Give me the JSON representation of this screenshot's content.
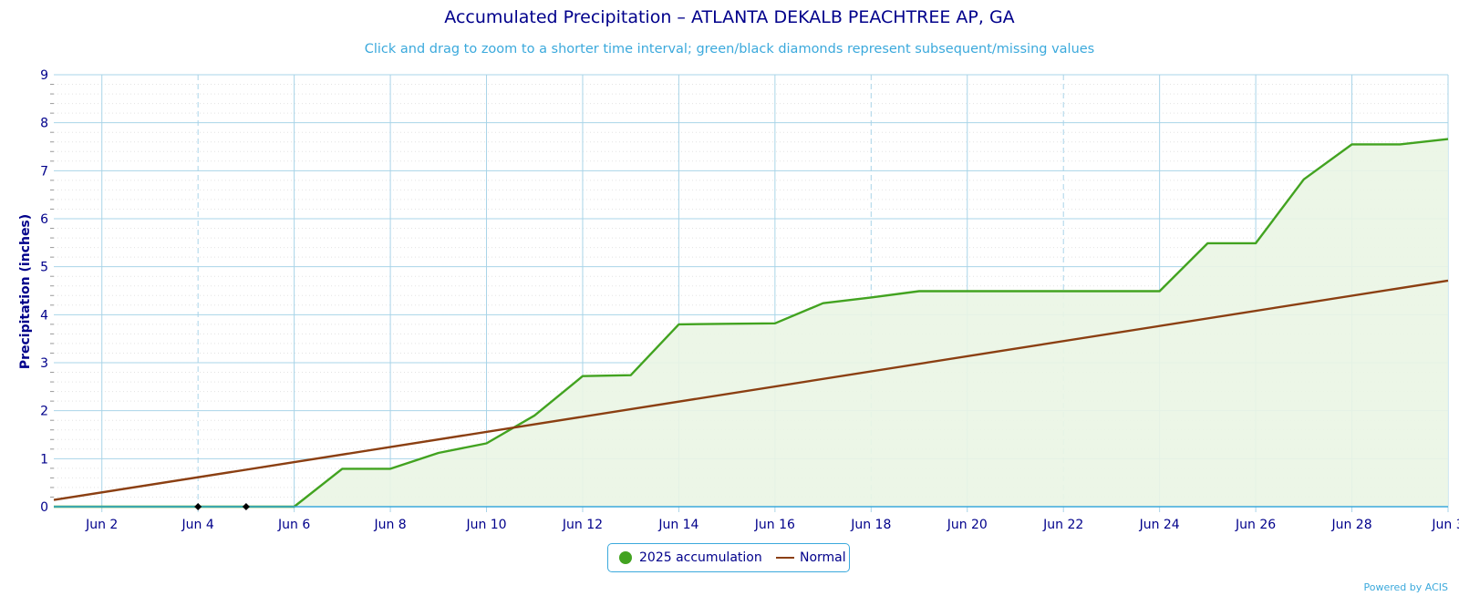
{
  "title": "Accumulated Precipitation – ATLANTA DEKALB PEACHTREE AP, GA",
  "subtitle": "Click and drag to zoom to a shorter time interval; green/black diamonds represent subsequent/missing values",
  "credit": "Powered by ACIS",
  "legend": {
    "accum_label": "2025 accumulation",
    "normal_label": "Normal"
  },
  "colors": {
    "accum_line": "#42a320",
    "accum_fill": "#eaf5e4",
    "normal_line": "#8b3f12",
    "grid": "#a9d4e8",
    "text": "#00008b",
    "accent": "#3ba9dc"
  },
  "chart_data": {
    "type": "area",
    "title": "Accumulated Precipitation – ATLANTA DEKALB PEACHTREE AP, GA",
    "ylabel": "Precipitation (inches)",
    "xlabel": "",
    "ylim": [
      0,
      9
    ],
    "xlim": [
      "Jun 1",
      "Jun 30"
    ],
    "yticks": [
      "0",
      "1",
      "2",
      "3",
      "4",
      "5",
      "6",
      "7",
      "8",
      "9"
    ],
    "xticks": [
      "Jun 2",
      "Jun 4",
      "Jun 6",
      "Jun 8",
      "Jun 10",
      "Jun 12",
      "Jun 14",
      "Jun 16",
      "Jun 18",
      "Jun 20",
      "Jun 22",
      "Jun 24",
      "Jun 26",
      "Jun 28",
      "Jun 3"
    ],
    "grid": true,
    "legend_position": "bottom-center",
    "series": [
      {
        "name": "2025 accumulation",
        "kind": "area",
        "x": [
          "Jun 1",
          "Jun 2",
          "Jun 3",
          "Jun 4",
          "Jun 5",
          "Jun 6",
          "Jun 7",
          "Jun 8",
          "Jun 9",
          "Jun 10",
          "Jun 11",
          "Jun 12",
          "Jun 13",
          "Jun 14",
          "Jun 15",
          "Jun 16",
          "Jun 17",
          "Jun 18",
          "Jun 19",
          "Jun 20",
          "Jun 21",
          "Jun 22",
          "Jun 23",
          "Jun 24",
          "Jun 25",
          "Jun 26",
          "Jun 27",
          "Jun 28",
          "Jun 29",
          "Jun 30"
        ],
        "values": [
          0.0,
          0.0,
          0.0,
          0.0,
          0.0,
          0.0,
          0.79,
          0.79,
          1.12,
          1.32,
          1.9,
          2.72,
          2.74,
          3.8,
          3.81,
          3.82,
          4.24,
          4.36,
          4.49,
          4.49,
          4.49,
          4.49,
          4.49,
          4.49,
          5.49,
          5.49,
          6.82,
          7.55,
          7.55,
          7.66
        ]
      },
      {
        "name": "Normal",
        "kind": "line",
        "x": [
          "Jun 1",
          "Jun 30"
        ],
        "values": [
          0.14,
          4.71
        ]
      }
    ],
    "missing_markers": {
      "x": [
        "Jun 4",
        "Jun 5"
      ],
      "values": [
        0,
        0
      ]
    }
  }
}
